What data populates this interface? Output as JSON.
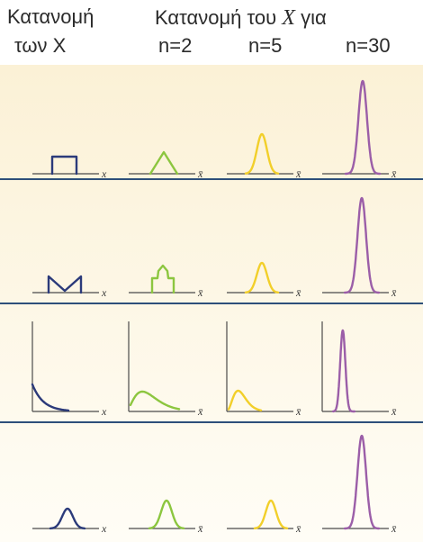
{
  "headers": {
    "col1_line1": "Κατανομή",
    "col1_line2": "των X",
    "title_prefix": "Κατανομή του",
    "title_var": "X",
    "title_suffix": "για",
    "n_labels": [
      "n=2",
      "n=5",
      "n=30"
    ]
  },
  "axis_labels": {
    "x": "x",
    "xbar": "x̄"
  },
  "colors": {
    "population": "#2b3a7a",
    "n2": "#8cc63f",
    "n5": "#f2cf2a",
    "n30": "#9b5ea8",
    "axis": "#4a4a4a",
    "panel_top": "#fbf1d6",
    "panel_bottom": "#fffdf6",
    "separator": "#2d4f7a"
  },
  "rows": [
    {
      "population": "uniform",
      "n2": "triangular",
      "n5": "bell",
      "n30": "narrow-bell"
    },
    {
      "population": "bimodal-v",
      "n2": "bumpy",
      "n5": "bell",
      "n30": "narrow-bell"
    },
    {
      "population": "exponential",
      "n2": "skewed",
      "n5": "less-skewed",
      "n30": "narrow-bell"
    },
    {
      "population": "normal",
      "n2": "bell",
      "n5": "bell",
      "n30": "narrow-bell"
    }
  ]
}
